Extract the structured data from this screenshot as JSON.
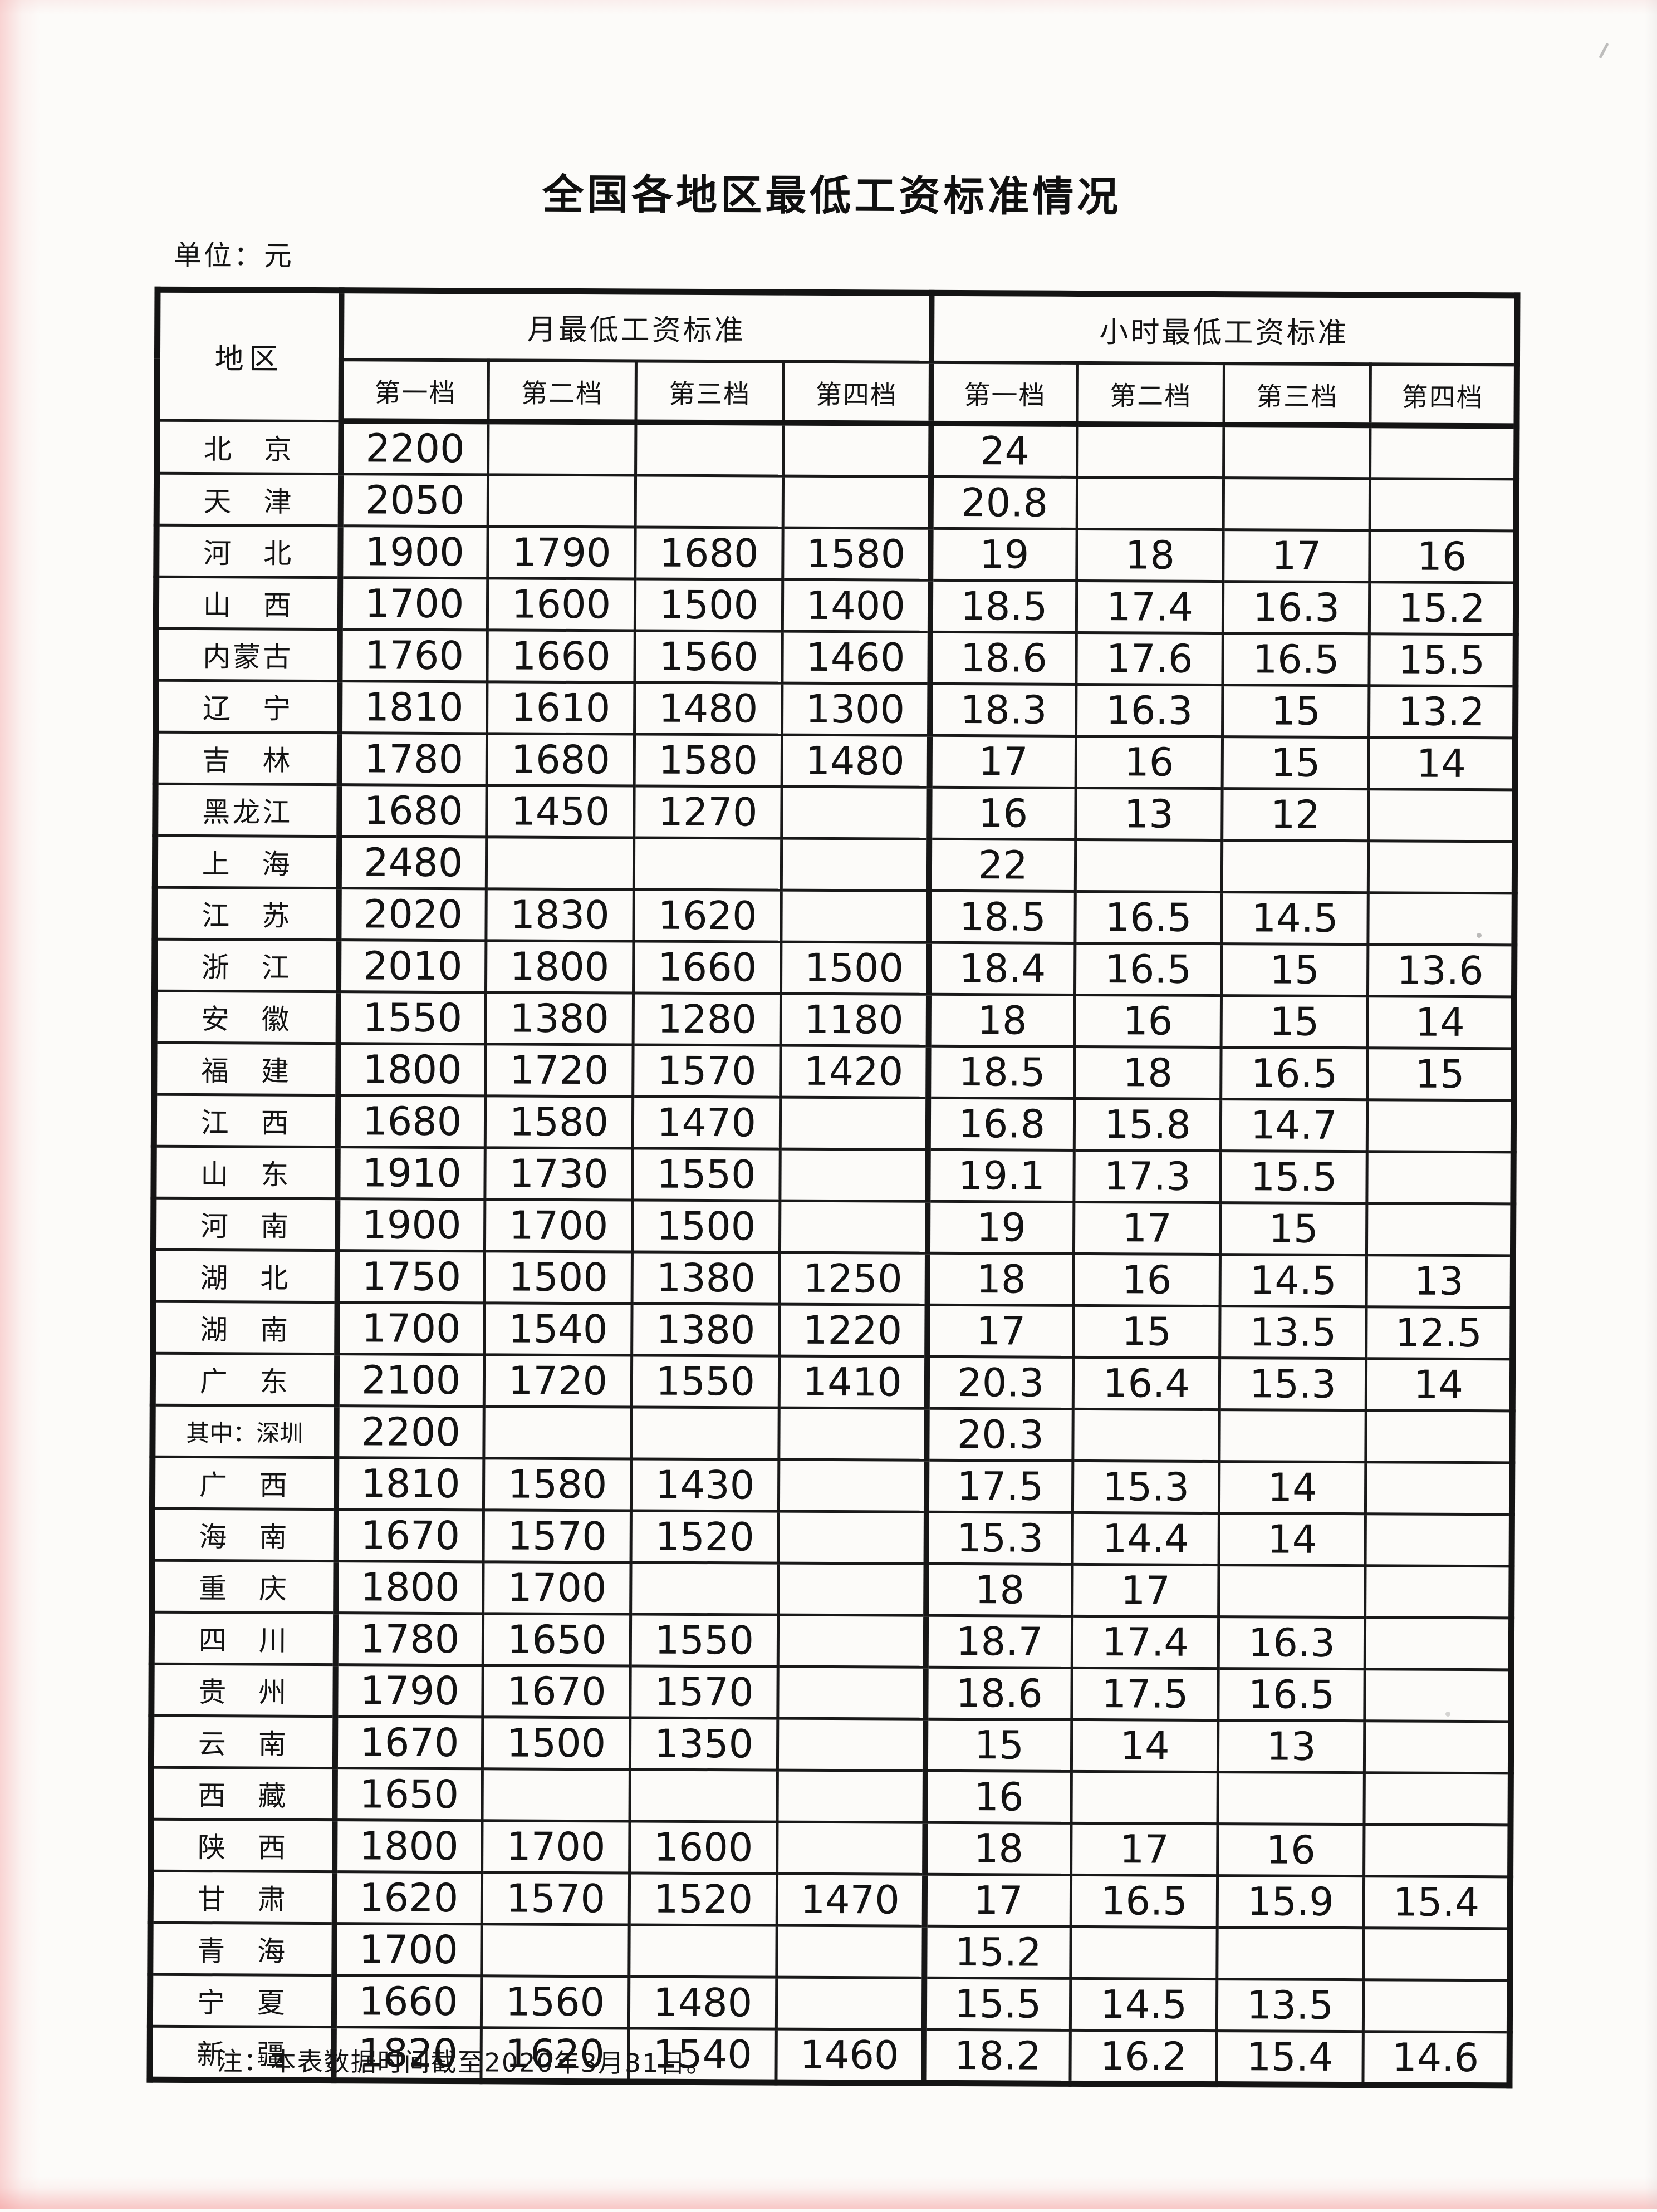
{
  "page": {
    "title": "全国各地区最低工资标准情况",
    "unit_label": "单位：元",
    "note": "注：本表数据时间截至2020年3月31日。"
  },
  "table": {
    "region_header": "地区",
    "groups": [
      {
        "label": "月最低工资标准",
        "columns": [
          "第一档",
          "第二档",
          "第三档",
          "第四档"
        ]
      },
      {
        "label": "小时最低工资标准",
        "columns": [
          "第一档",
          "第二档",
          "第三档",
          "第四档"
        ]
      }
    ],
    "rows": [
      {
        "region": "北　京",
        "monthly": [
          "2200",
          "",
          "",
          ""
        ],
        "hourly": [
          "24",
          "",
          "",
          ""
        ]
      },
      {
        "region": "天　津",
        "monthly": [
          "2050",
          "",
          "",
          ""
        ],
        "hourly": [
          "20.8",
          "",
          "",
          ""
        ]
      },
      {
        "region": "河　北",
        "monthly": [
          "1900",
          "1790",
          "1680",
          "1580"
        ],
        "hourly": [
          "19",
          "18",
          "17",
          "16"
        ]
      },
      {
        "region": "山　西",
        "monthly": [
          "1700",
          "1600",
          "1500",
          "1400"
        ],
        "hourly": [
          "18.5",
          "17.4",
          "16.3",
          "15.2"
        ]
      },
      {
        "region": "内蒙古",
        "monthly": [
          "1760",
          "1660",
          "1560",
          "1460"
        ],
        "hourly": [
          "18.6",
          "17.6",
          "16.5",
          "15.5"
        ]
      },
      {
        "region": "辽　宁",
        "monthly": [
          "1810",
          "1610",
          "1480",
          "1300"
        ],
        "hourly": [
          "18.3",
          "16.3",
          "15",
          "13.2"
        ]
      },
      {
        "region": "吉　林",
        "monthly": [
          "1780",
          "1680",
          "1580",
          "1480"
        ],
        "hourly": [
          "17",
          "16",
          "15",
          "14"
        ]
      },
      {
        "region": "黑龙江",
        "monthly": [
          "1680",
          "1450",
          "1270",
          ""
        ],
        "hourly": [
          "16",
          "13",
          "12",
          ""
        ]
      },
      {
        "region": "上　海",
        "monthly": [
          "2480",
          "",
          "",
          ""
        ],
        "hourly": [
          "22",
          "",
          "",
          ""
        ]
      },
      {
        "region": "江　苏",
        "monthly": [
          "2020",
          "1830",
          "1620",
          ""
        ],
        "hourly": [
          "18.5",
          "16.5",
          "14.5",
          ""
        ]
      },
      {
        "region": "浙　江",
        "monthly": [
          "2010",
          "1800",
          "1660",
          "1500"
        ],
        "hourly": [
          "18.4",
          "16.5",
          "15",
          "13.6"
        ]
      },
      {
        "region": "安　徽",
        "monthly": [
          "1550",
          "1380",
          "1280",
          "1180"
        ],
        "hourly": [
          "18",
          "16",
          "15",
          "14"
        ]
      },
      {
        "region": "福　建",
        "monthly": [
          "1800",
          "1720",
          "1570",
          "1420"
        ],
        "hourly": [
          "18.5",
          "18",
          "16.5",
          "15"
        ]
      },
      {
        "region": "江　西",
        "monthly": [
          "1680",
          "1580",
          "1470",
          ""
        ],
        "hourly": [
          "16.8",
          "15.8",
          "14.7",
          ""
        ]
      },
      {
        "region": "山　东",
        "monthly": [
          "1910",
          "1730",
          "1550",
          ""
        ],
        "hourly": [
          "19.1",
          "17.3",
          "15.5",
          ""
        ]
      },
      {
        "region": "河　南",
        "monthly": [
          "1900",
          "1700",
          "1500",
          ""
        ],
        "hourly": [
          "19",
          "17",
          "15",
          ""
        ]
      },
      {
        "region": "湖　北",
        "monthly": [
          "1750",
          "1500",
          "1380",
          "1250"
        ],
        "hourly": [
          "18",
          "16",
          "14.5",
          "13"
        ]
      },
      {
        "region": "湖　南",
        "monthly": [
          "1700",
          "1540",
          "1380",
          "1220"
        ],
        "hourly": [
          "17",
          "15",
          "13.5",
          "12.5"
        ]
      },
      {
        "region": "广　东",
        "monthly": [
          "2100",
          "1720",
          "1550",
          "1410"
        ],
        "hourly": [
          "20.3",
          "16.4",
          "15.3",
          "14"
        ]
      },
      {
        "region": "其中：深圳",
        "monthly": [
          "2200",
          "",
          "",
          ""
        ],
        "hourly": [
          "20.3",
          "",
          "",
          ""
        ]
      },
      {
        "region": "广　西",
        "monthly": [
          "1810",
          "1580",
          "1430",
          ""
        ],
        "hourly": [
          "17.5",
          "15.3",
          "14",
          ""
        ]
      },
      {
        "region": "海　南",
        "monthly": [
          "1670",
          "1570",
          "1520",
          ""
        ],
        "hourly": [
          "15.3",
          "14.4",
          "14",
          ""
        ]
      },
      {
        "region": "重　庆",
        "monthly": [
          "1800",
          "1700",
          "",
          ""
        ],
        "hourly": [
          "18",
          "17",
          "",
          ""
        ]
      },
      {
        "region": "四　川",
        "monthly": [
          "1780",
          "1650",
          "1550",
          ""
        ],
        "hourly": [
          "18.7",
          "17.4",
          "16.3",
          ""
        ]
      },
      {
        "region": "贵　州",
        "monthly": [
          "1790",
          "1670",
          "1570",
          ""
        ],
        "hourly": [
          "18.6",
          "17.5",
          "16.5",
          ""
        ]
      },
      {
        "region": "云　南",
        "monthly": [
          "1670",
          "1500",
          "1350",
          ""
        ],
        "hourly": [
          "15",
          "14",
          "13",
          ""
        ]
      },
      {
        "region": "西　藏",
        "monthly": [
          "1650",
          "",
          "",
          ""
        ],
        "hourly": [
          "16",
          "",
          "",
          ""
        ]
      },
      {
        "region": "陕　西",
        "monthly": [
          "1800",
          "1700",
          "1600",
          ""
        ],
        "hourly": [
          "18",
          "17",
          "16",
          ""
        ]
      },
      {
        "region": "甘　肃",
        "monthly": [
          "1620",
          "1570",
          "1520",
          "1470"
        ],
        "hourly": [
          "17",
          "16.5",
          "15.9",
          "15.4"
        ]
      },
      {
        "region": "青　海",
        "monthly": [
          "1700",
          "",
          "",
          ""
        ],
        "hourly": [
          "15.2",
          "",
          "",
          ""
        ]
      },
      {
        "region": "宁　夏",
        "monthly": [
          "1660",
          "1560",
          "1480",
          ""
        ],
        "hourly": [
          "15.5",
          "14.5",
          "13.5",
          ""
        ]
      },
      {
        "region": "新　疆",
        "monthly": [
          "1820",
          "1620",
          "1540",
          "1460"
        ],
        "hourly": [
          "18.2",
          "16.2",
          "15.4",
          "14.6"
        ]
      }
    ]
  }
}
